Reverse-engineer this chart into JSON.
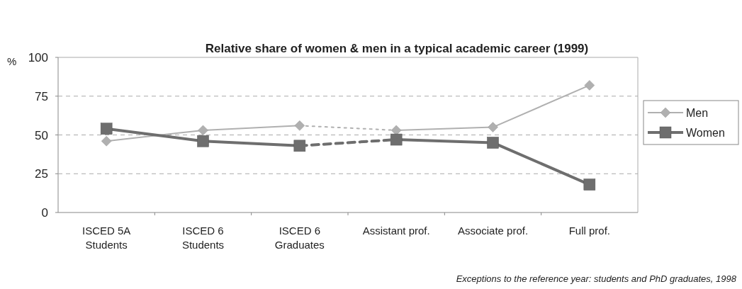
{
  "chart_data": {
    "type": "line",
    "title": "Relative share of women & men in a typical academic career (1999)",
    "ylabel": "%",
    "categories": [
      "ISCED 5A\nStudents",
      "ISCED 6\nStudents",
      "ISCED 6\nGraduates",
      "Assistant prof.",
      "Associate prof.",
      "Full prof."
    ],
    "series": [
      {
        "name": "Men",
        "color": "#b0b0b0",
        "values": [
          46,
          53,
          56,
          null,
          null,
          null
        ],
        "marker": "diamond",
        "line_style": "solid"
      },
      {
        "color": "#b0b0b0",
        "values": [
          null,
          null,
          null,
          53,
          55,
          82
        ],
        "marker": "diamond",
        "line_style": "solid"
      },
      {
        "color": "#b0b0b0",
        "values": [
          null,
          null,
          56,
          53,
          null,
          null
        ],
        "marker": "none",
        "line_style": "dotted"
      },
      {
        "name": "Women",
        "color": "#6e6e6e",
        "values": [
          54,
          46,
          43,
          null,
          null,
          null
        ],
        "marker": "square",
        "line_style": "solid"
      },
      {
        "color": "#6e6e6e",
        "values": [
          null,
          null,
          null,
          47,
          45,
          18
        ],
        "marker": "square",
        "line_style": "solid"
      },
      {
        "color": "#6e6e6e",
        "values": [
          null,
          null,
          43,
          47,
          null,
          null
        ],
        "marker": "none",
        "line_style": "dashed"
      }
    ],
    "ylim": [
      0,
      100
    ],
    "yticks": [
      0,
      25,
      50,
      75,
      100
    ],
    "grid": "y",
    "legend": "right",
    "annotations": [
      "Exceptions to the reference year: students and PhD graduates, 1998"
    ]
  }
}
